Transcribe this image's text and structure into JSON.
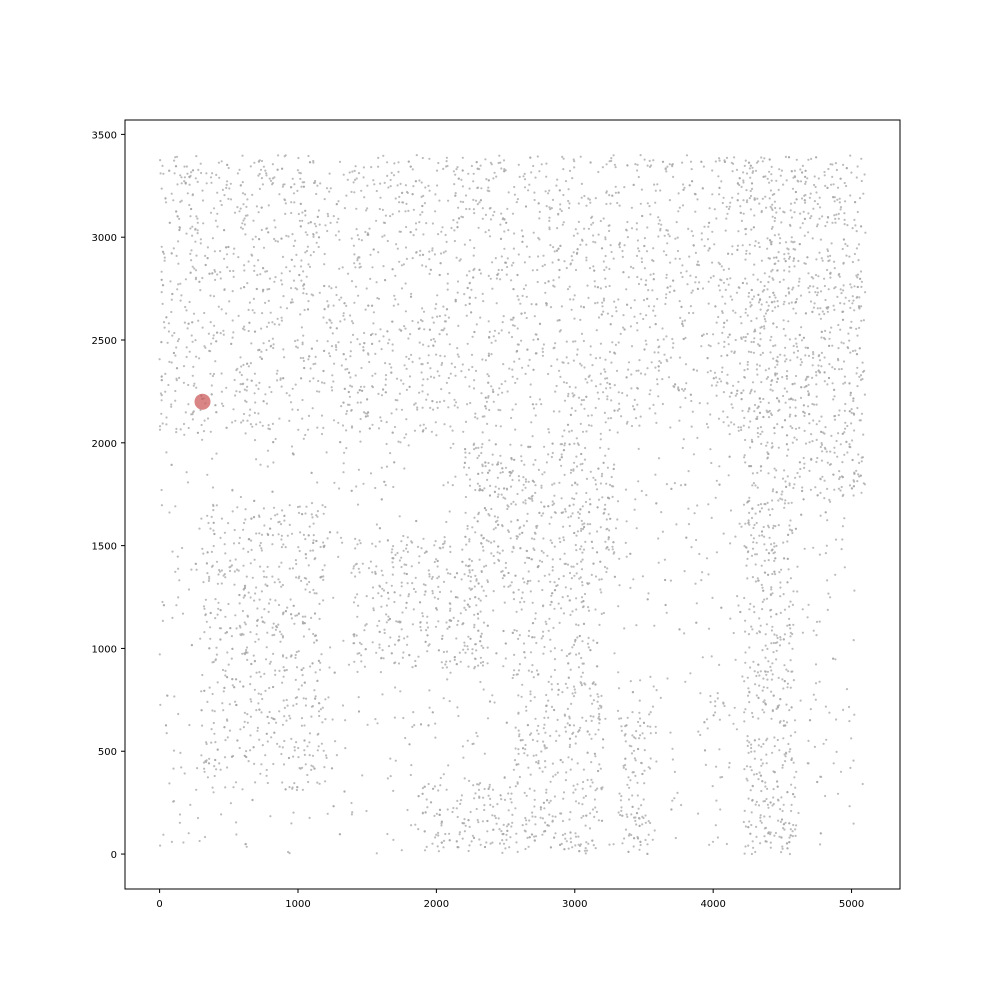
{
  "chart_data": {
    "type": "scatter",
    "title": "",
    "xlabel": "",
    "ylabel": "",
    "xlim": [
      -250,
      5350
    ],
    "ylim": [
      -170,
      3570
    ],
    "xticks": [
      0,
      1000,
      2000,
      3000,
      4000,
      5000
    ],
    "yticks": [
      0,
      500,
      1000,
      1500,
      2000,
      2500,
      3000,
      3500
    ],
    "xticklabels": [
      "0",
      "1000",
      "2000",
      "3000",
      "4000",
      "5000"
    ],
    "yticklabels": [
      "0",
      "500",
      "1000",
      "1500",
      "2000",
      "2500",
      "3000",
      "3500"
    ],
    "grid": false,
    "legend": "none",
    "point_extent": {
      "x": [
        0,
        5100
      ],
      "y": [
        0,
        3400
      ]
    },
    "series": [
      {
        "color": "#a6a6a6",
        "description_points": "stippled grey point cloud"
      },
      {
        "color": "#cd5c5c",
        "points": [
          [
            310,
            2200
          ]
        ]
      }
    ],
    "dark_regions": [
      {
        "x": [
          4220,
          4600
        ],
        "y": [
          0,
          3400
        ],
        "density": 0.95
      },
      {
        "x": [
          4300,
          5100
        ],
        "y": [
          1700,
          3400
        ],
        "density": 0.8
      },
      {
        "x": [
          0,
          5100
        ],
        "y": [
          2050,
          3400
        ],
        "density": 0.55
      },
      {
        "x": [
          2200,
          3300
        ],
        "y": [
          1300,
          2000
        ],
        "density": 0.85
      },
      {
        "x": [
          2550,
          3200
        ],
        "y": [
          0,
          1300
        ],
        "density": 0.7
      },
      {
        "x": [
          1400,
          2350
        ],
        "y": [
          900,
          1550
        ],
        "density": 0.7
      },
      {
        "x": [
          300,
          1200
        ],
        "y": [
          300,
          1700
        ],
        "density": 0.6
      },
      {
        "x": [
          1900,
          2600
        ],
        "y": [
          0,
          350
        ],
        "density": 0.85
      },
      {
        "x": [
          3300,
          3550
        ],
        "y": [
          0,
          700
        ],
        "density": 0.8
      },
      {
        "x": [
          3900,
          4150
        ],
        "y": [
          600,
          800
        ],
        "density": 0.7
      }
    ]
  }
}
